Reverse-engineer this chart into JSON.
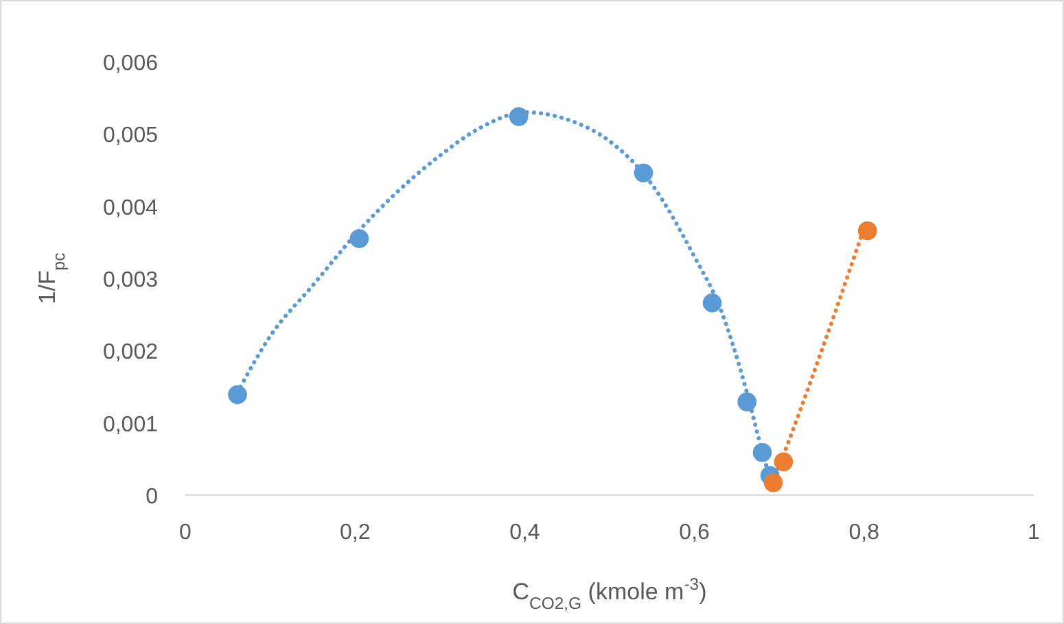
{
  "chart_data": {
    "type": "scatter",
    "xlabel": "C$_{CO2,G}$ (kmole m$^{-3}$)",
    "ylabel": "1/F$_{pc}$",
    "xlim": [
      0,
      1
    ],
    "xticks": [
      0,
      {
        "value": 0.2,
        "label": "0,2"
      },
      {
        "value": 0.4,
        "label": "0,4"
      },
      {
        "value": 0.6,
        "label": "0,6"
      },
      {
        "value": 0.8,
        "label": "0,8"
      },
      1
    ],
    "ylim": [
      0,
      0.006
    ],
    "yticks": [
      0,
      {
        "value": 0.001,
        "label": "0,001"
      },
      {
        "value": 0.002,
        "label": "0,002"
      },
      {
        "value": 0.003,
        "label": "0,003"
      },
      {
        "value": 0.004,
        "label": "0,004"
      },
      {
        "value": 0.005,
        "label": "0,005"
      },
      {
        "value": 0.006,
        "label": "0,006"
      }
    ],
    "grid": false,
    "marker": "circle",
    "series": [
      {
        "type": "line",
        "color": "#5b9bd5",
        "marker": "none",
        "line_style": "dotted",
        "x": [
          0.065,
          0.1,
          0.15,
          0.2,
          0.25,
          0.3,
          0.35,
          0.4,
          0.45,
          0.5,
          0.55,
          0.6,
          0.63,
          0.66,
          0.68,
          0.69
        ],
        "values": [
          0.0015,
          0.0022,
          0.0029,
          0.0036,
          0.0042,
          0.0047,
          0.0051,
          0.0053,
          0.0052,
          0.0049,
          0.0043,
          0.0033,
          0.0026,
          0.0015,
          0.0006,
          0.0002
        ]
      },
      {
        "type": "line",
        "color": "#ed7d31",
        "marker": "none",
        "line_style": "dotted",
        "x": [
          0.69,
          0.7,
          0.75,
          0.8
        ],
        "values": [
          0.0001,
          0.0004,
          0.002,
          0.0037
        ]
      },
      {
        "color": "#5b9bd5",
        "x": [
          0.0615,
          0.205,
          0.393,
          0.54,
          0.621,
          0.662,
          0.68,
          0.689
        ],
        "values": [
          0.00139,
          0.00355,
          0.00524,
          0.00446,
          0.00266,
          0.00129,
          0.00059,
          0.00027
        ]
      },
      {
        "color": "#ed7d31",
        "x": [
          0.693,
          0.705,
          0.804
        ],
        "values": [
          0.00017,
          0.00046,
          0.00366
        ]
      }
    ]
  }
}
